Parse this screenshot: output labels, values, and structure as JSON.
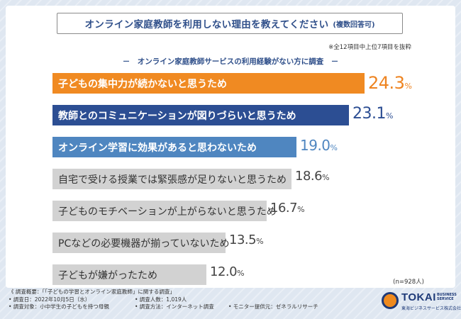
{
  "title": "オンライン家庭教師を利用しない理由を教えてください",
  "title_note": "(複数回答可)",
  "top_note": "※全12項目中上位7項目を抜粋",
  "subtitle": "－　オンライン家庭教師サービスの利用経験がない方に調査　－",
  "sample_size": "(n=928人)",
  "colors": {
    "orange": "#f08a22",
    "navy": "#2c4e93",
    "lightblue": "#4f86c0",
    "gray": "#d2d2d2",
    "val_orange": "#ee8421",
    "val_navy": "#2c4e93",
    "val_blue": "#4f86c0",
    "val_gray": "#444444"
  },
  "chart_data": {
    "type": "bar",
    "orientation": "horizontal",
    "title": "オンライン家庭教師を利用しない理由を教えてください",
    "unit": "%",
    "xlim": [
      0,
      27
    ],
    "categories": [
      "子どもの集中力が続かないと思うため",
      "教師とのコミュニケーションが図りづらいと思うため",
      "オンライン学習に効果があると思わないため",
      "自宅で受ける授業では緊張感が足りないと思うため",
      "子どものモチベーションが上がらないと思うため",
      "PCなどの必要機器が揃っていないため",
      "子どもが嫌がったため"
    ],
    "values": [
      24.3,
      23.1,
      19.0,
      18.6,
      16.7,
      13.5,
      12.0
    ],
    "value_labels": [
      "24.3",
      "23.1",
      "19.0",
      "18.6",
      "16.7",
      "13.5",
      "12.0"
    ],
    "styles": [
      "orange",
      "navy",
      "lightblue",
      "gray",
      "gray",
      "gray",
      "gray"
    ]
  },
  "footer": {
    "line1": "《 調査概要：「「子どもの学習とオンライン家庭教師」に関する調査」",
    "line2_col1": "• 調査日：2022年10月5日（水）",
    "line2_col2": "• 調査人数：1,019人",
    "line3_col1": "• 調査対象：小中学生の子どもを持つ母親",
    "line3_col2": "• 調査方法：インターネット調査",
    "line3_col3": "• モニター提供元：ゼネラルリサーチ"
  },
  "logo": {
    "word": "TOKAI",
    "tag": "BUSINESS SERVICE",
    "jp": "東海ビジネスサービス株式会社"
  }
}
